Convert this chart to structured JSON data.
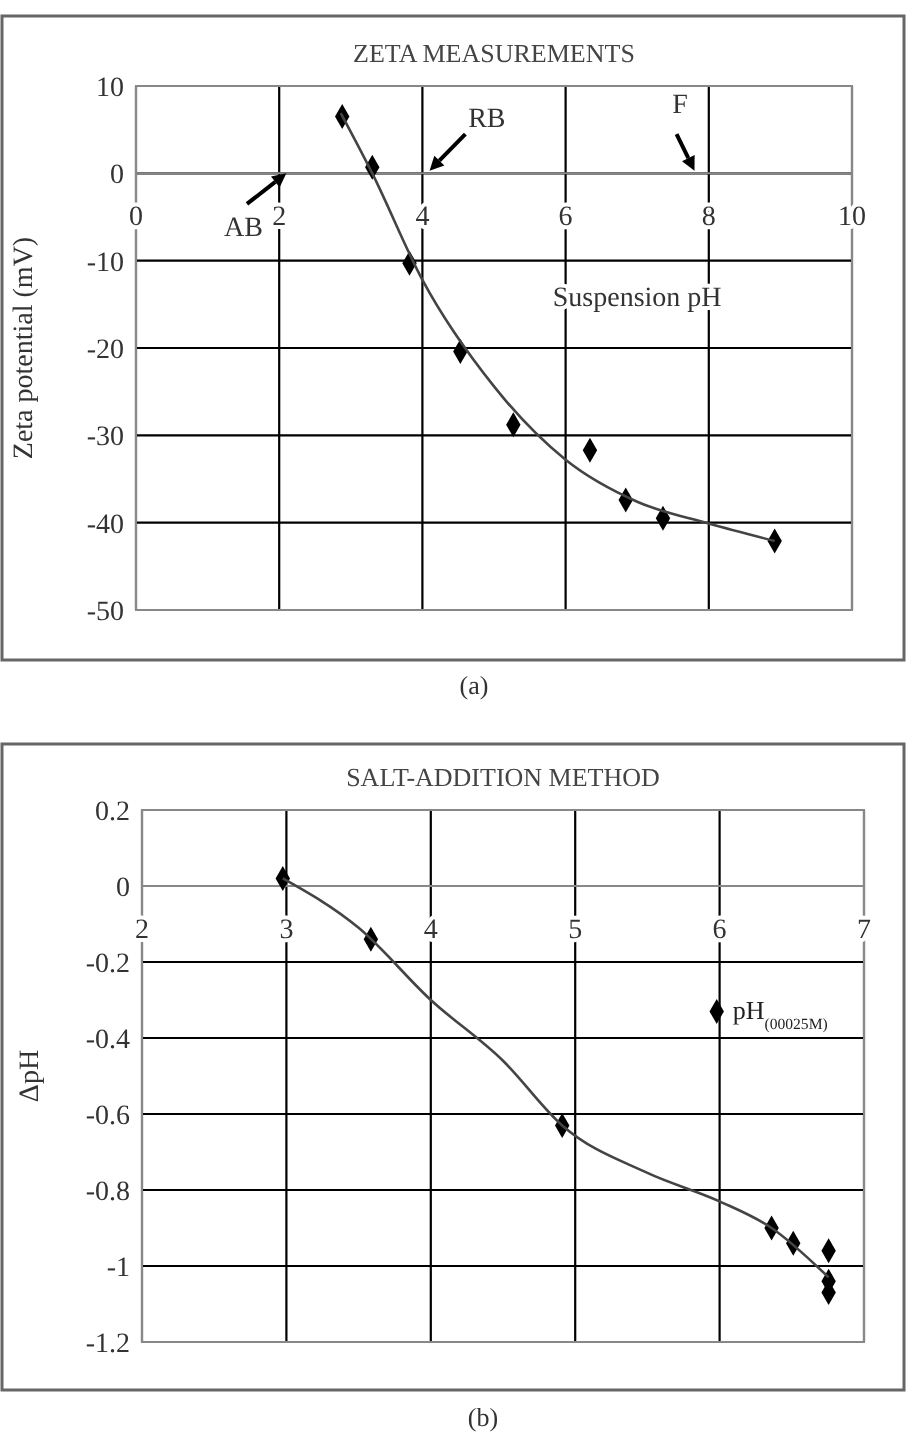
{
  "chart_data": [
    {
      "type": "scatter",
      "title": "ZETA MEASUREMENTS",
      "xlabel": "Suspension pH",
      "ylabel": "Zeta potential (mV)",
      "xlim": [
        0,
        10
      ],
      "xticks": [
        0,
        2,
        4,
        6,
        8,
        10
      ],
      "ylim": [
        -50,
        10
      ],
      "yticks": [
        -50,
        -40,
        -30,
        -20,
        -10,
        0,
        10
      ],
      "grid": true,
      "series": [
        {
          "type": "scatter",
          "marker": "diamond",
          "color": "#000000",
          "x": [
            2.88,
            3.3,
            3.82,
            4.53,
            5.27,
            6.34,
            6.84,
            7.36,
            8.92
          ],
          "values": [
            6.5,
            0.7,
            -10.3,
            -20.4,
            -28.8,
            -31.7,
            -37.4,
            -39.5,
            -42.1
          ]
        },
        {
          "type": "line",
          "color": "#444444",
          "x": [
            2.86,
            3.3,
            4,
            5,
            6,
            7,
            8,
            8.92
          ],
          "values": [
            6.9,
            0,
            -12.2,
            -24.4,
            -32.8,
            -37.6,
            -40.1,
            -42.1
          ]
        }
      ],
      "annotations": [
        "AB",
        "RB",
        "F",
        "(a)"
      ]
    },
    {
      "type": "scatter",
      "title": "SALT-ADDITION METHOD",
      "ylabel": "ΔpH",
      "xlim": [
        2,
        7
      ],
      "xticks": [
        2,
        3,
        4,
        5,
        6,
        7
      ],
      "ylim": [
        -1.2,
        0.2
      ],
      "yticks": [
        -1.2,
        -1,
        -0.8,
        -0.6,
        -0.4,
        -0.2,
        0,
        0.2
      ],
      "grid": true,
      "series": [
        {
          "type": "scatter",
          "marker": "diamond",
          "color": "#000000",
          "x": [
            2.975,
            3.585,
            4.91,
            6.36,
            6.51,
            6.755,
            6.755,
            6.755
          ],
          "values": [
            0.02,
            -0.14,
            -0.63,
            -0.9,
            -0.94,
            -0.96,
            -1.04,
            -1.07
          ]
        },
        {
          "type": "line",
          "color": "#444444",
          "x": [
            2.975,
            3.5,
            4,
            4.5,
            4.91,
            5.5,
            6,
            6.36,
            6.755
          ],
          "values": [
            0.02,
            -0.11,
            -0.3,
            -0.46,
            -0.63,
            -0.755,
            -0.83,
            -0.9,
            -1.03
          ]
        },
        {
          "type": "scatter",
          "marker": "diamond",
          "name": "pH$_{(00025M)}$",
          "color": "#000000",
          "x": [
            5.98
          ],
          "values": [
            -0.33
          ]
        }
      ],
      "annotations": [
        "(b)"
      ]
    }
  ]
}
